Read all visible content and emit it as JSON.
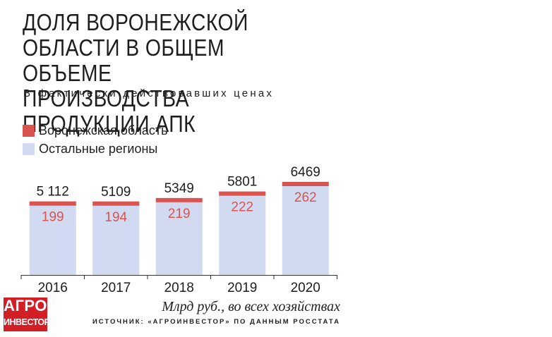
{
  "header": {
    "title_lines": [
      "ДОЛЯ ВОРОНЕЖСКОЙ",
      "ОБЛАСТИ В ОБЩЕМ ОБЪЕМЕ",
      "ПРОИЗВОДСТВА ПРОДУКЦИИ АПК"
    ],
    "subtitle": "В фактически действовавших ценах"
  },
  "legend": [
    {
      "label": "Воронежская область",
      "color": "#d9534f"
    },
    {
      "label": "Остальные регионы",
      "color": "#d2daf2"
    }
  ],
  "chart_data": {
    "type": "bar",
    "stacked": true,
    "categories": [
      "2016",
      "2017",
      "2018",
      "2019",
      "2020"
    ],
    "totals": [
      5112,
      5109,
      5349,
      5801,
      6469
    ],
    "total_labels": [
      "5 112",
      "5109",
      "5349",
      "5801",
      "6469"
    ],
    "series": [
      {
        "name": "Воронежская область",
        "values": [
          199,
          194,
          219,
          222,
          262
        ],
        "color": "#d9534f"
      },
      {
        "name": "Остальные регионы",
        "values": [
          4913,
          4915,
          5130,
          5579,
          6207
        ],
        "color": "#d2daf2"
      }
    ],
    "grid": false,
    "legend_position": "top-left"
  },
  "footer": {
    "caption": "Млрд руб., во всех хозяйствах",
    "source": "ИСТОЧНИК: «АГРОИНВЕСТОР» ПО ДАННЫМ РОССТАТА"
  },
  "logo": {
    "line1": "АГРО",
    "line2": "ИНВЕСТОР",
    "color": "#d21f26"
  }
}
